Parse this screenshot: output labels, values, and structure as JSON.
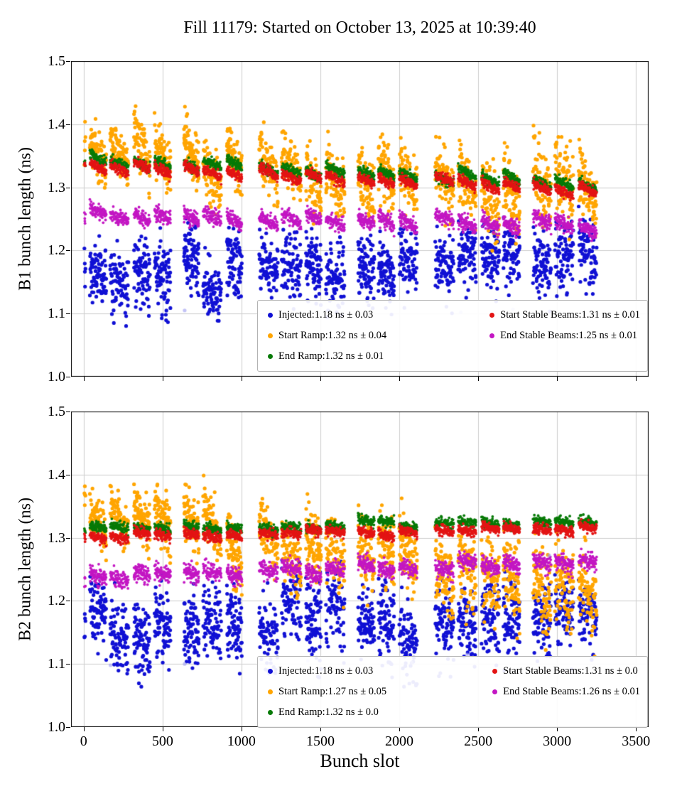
{
  "title": "Fill 11179: Started on October 13, 2025 at 10:39:40",
  "xlabel": "Bunch slot",
  "background": "#ffffff",
  "chart_data": [
    {
      "type": "scatter",
      "ylabel": "B1 bunch length (ns)",
      "ylim": [
        1.0,
        1.5
      ],
      "xlim": [
        -80,
        3580
      ],
      "yticks": [
        1.0,
        1.1,
        1.2,
        1.3,
        1.4,
        1.5
      ],
      "xticks": [
        0,
        500,
        1000,
        1500,
        2000,
        2500,
        3000,
        3500
      ],
      "grid": true,
      "show_x_tick_labels": false,
      "legend_position": "lower center-right inside axes, 2 columns",
      "series": [
        {
          "name": "Injected",
          "label": "Injected:1.18 ns ± 0.03",
          "color": "#1010d4",
          "mean": 1.18,
          "std": 0.03,
          "y_start": 1.162,
          "y_end": 1.192,
          "spread": 0.026,
          "train_jitter": 0.012,
          "train_slope": -0.012,
          "size": 2.6
        },
        {
          "name": "Start Ramp",
          "label": "Start Ramp:1.32 ns ± 0.04",
          "color": "#ffa500",
          "mean": 1.32,
          "std": 0.04,
          "y_start": 1.366,
          "y_end": 1.286,
          "spread": 0.019,
          "spread_end": 0.03,
          "train_jitter": 0.012,
          "train_slope": -0.045,
          "size": 2.6
        },
        {
          "name": "End Ramp",
          "label": "End Ramp:1.32 ns ± 0.01",
          "color": "#077a07",
          "mean": 1.32,
          "std": 0.01,
          "y_start": 1.344,
          "y_end": 1.303,
          "spread": 0.004,
          "train_jitter": 0.003,
          "train_slope": -0.012,
          "size": 1.9
        },
        {
          "name": "Start Stable Beams",
          "label": "Start Stable Beams:1.31 ns ± 0.01",
          "color": "#e31414",
          "mean": 1.31,
          "std": 0.01,
          "y_start": 1.336,
          "y_end": 1.294,
          "spread": 0.004,
          "train_jitter": 0.003,
          "train_slope": -0.012,
          "size": 1.9
        },
        {
          "name": "End Stable Beams",
          "label": "End Stable Beams:1.25 ns ± 0.01",
          "color": "#c316c3",
          "mean": 1.25,
          "std": 0.01,
          "y_start": 1.258,
          "y_end": 1.241,
          "spread": 0.006,
          "train_jitter": 0.004,
          "train_slope": -0.014,
          "size": 1.9
        }
      ],
      "outliers": {
        "color": "#9b9bf0",
        "points": [
          [
            640,
            1.105
          ],
          [
            2390,
            1.102
          ],
          [
            2720,
            1.107
          ]
        ]
      }
    },
    {
      "type": "scatter",
      "ylabel": "B2 bunch length (ns)",
      "ylim": [
        1.0,
        1.5
      ],
      "xlim": [
        -80,
        3580
      ],
      "yticks": [
        1.0,
        1.1,
        1.2,
        1.3,
        1.4,
        1.5
      ],
      "xticks": [
        0,
        500,
        1000,
        1500,
        2000,
        2500,
        3000,
        3500
      ],
      "grid": true,
      "show_x_tick_labels": true,
      "legend_position": "lower center-right inside axes, 2 columns",
      "series": [
        {
          "name": "Injected",
          "label": "Injected:1.18 ns ± 0.03",
          "color": "#1010d4",
          "mean": 1.18,
          "std": 0.03,
          "y_start": 1.155,
          "y_end": 1.172,
          "spread": 0.03,
          "train_jitter": 0.014,
          "train_slope": -0.015,
          "size": 2.6
        },
        {
          "name": "Start Ramp",
          "label": "Start Ramp:1.27 ns ± 0.05",
          "color": "#ffa500",
          "mean": 1.27,
          "std": 0.05,
          "y_start": 1.352,
          "y_end": 1.215,
          "spread": 0.017,
          "spread_end": 0.036,
          "train_jitter": 0.012,
          "train_slope": -0.04,
          "size": 2.6
        },
        {
          "name": "End Ramp",
          "label": "End Ramp:1.32 ns ± 0.0",
          "color": "#077a07",
          "mean": 1.32,
          "std": 0.0,
          "y_start": 1.312,
          "y_end": 1.326,
          "spread": 0.004,
          "train_jitter": 0.003,
          "train_slope": -0.006,
          "size": 1.9
        },
        {
          "name": "Start Stable Beams",
          "label": "Start Stable Beams:1.31 ns ± 0.0",
          "color": "#e31414",
          "mean": 1.31,
          "std": 0.0,
          "y_start": 1.302,
          "y_end": 1.317,
          "spread": 0.004,
          "train_jitter": 0.003,
          "train_slope": -0.006,
          "size": 1.9
        },
        {
          "name": "End Stable Beams",
          "label": "End Stable Beams:1.26 ns ± 0.01",
          "color": "#c316c3",
          "mean": 1.26,
          "std": 0.01,
          "y_start": 1.238,
          "y_end": 1.263,
          "spread": 0.007,
          "train_jitter": 0.004,
          "train_slope": -0.009,
          "size": 1.9
        }
      ],
      "outliers": {
        "color": "#9b9bf0",
        "points": [
          [
            170,
            1.098
          ],
          [
            640,
            1.1
          ],
          [
            1420,
            1.105
          ],
          [
            2080,
            1.102
          ],
          [
            2430,
            1.115
          ],
          [
            2950,
            1.272
          ],
          [
            3050,
            1.09
          ]
        ]
      }
    }
  ]
}
